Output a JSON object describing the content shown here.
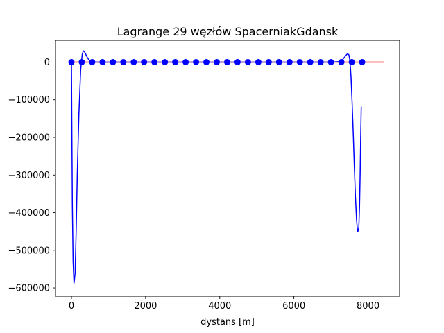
{
  "chart_data": {
    "type": "line",
    "title": "Lagrange 29 węzłów SpacerniakGdansk",
    "xlabel": "dystans [m]",
    "ylabel": "",
    "xlim": [
      -430,
      8850
    ],
    "ylim": [
      -622000,
      58000
    ],
    "x_ticks": [
      0,
      2000,
      4000,
      6000,
      8000
    ],
    "x_tick_labels": [
      "0",
      "2000",
      "4000",
      "6000",
      "8000"
    ],
    "y_ticks": [
      0,
      -100000,
      -200000,
      -300000,
      -400000,
      -500000,
      -600000
    ],
    "y_tick_labels": [
      "0",
      "−100000",
      "−200000",
      "−300000",
      "−400000",
      "−500000",
      "−600000"
    ],
    "grid": false,
    "series": [
      {
        "style": "line",
        "color": "#ff0000",
        "x": [
          0,
          8420
        ],
        "y": [
          0,
          0
        ]
      },
      {
        "style": "line",
        "color": "#0000ff",
        "x": [
          0,
          10,
          25,
          45,
          70,
          100,
          130,
          160,
          200,
          250,
          290,
          320,
          350,
          380,
          420,
          470,
          560,
          700,
          1000,
          2000,
          3000,
          4000,
          5000,
          6000,
          7000,
          7200,
          7300,
          7380,
          7440,
          7480,
          7510,
          7540,
          7570,
          7600,
          7630,
          7660,
          7690,
          7720,
          7750,
          7770,
          7785,
          7800,
          7815
        ],
        "y": [
          0,
          -150000,
          -380000,
          -530000,
          -588000,
          -560000,
          -440000,
          -290000,
          -140000,
          -20000,
          20000,
          30000,
          28000,
          22000,
          14000,
          6000,
          1000,
          0,
          0,
          0,
          0,
          0,
          0,
          0,
          0,
          1000,
          5000,
          15000,
          22000,
          20000,
          5000,
          -40000,
          -110000,
          -190000,
          -280000,
          -360000,
          -420000,
          -452000,
          -440000,
          -380000,
          -300000,
          -200000,
          -118000
        ]
      },
      {
        "style": "markers",
        "color": "#0000ff",
        "x": [
          0,
          280,
          560,
          840,
          1120,
          1400,
          1680,
          1960,
          2240,
          2520,
          2800,
          3080,
          3360,
          3640,
          3920,
          4200,
          4480,
          4760,
          5040,
          5320,
          5600,
          5880,
          6160,
          6440,
          6720,
          7000,
          7280,
          7560,
          7840
        ],
        "y": [
          0,
          0,
          0,
          0,
          0,
          0,
          0,
          0,
          0,
          0,
          0,
          0,
          0,
          0,
          0,
          0,
          0,
          0,
          0,
          0,
          0,
          0,
          0,
          0,
          0,
          0,
          0,
          0,
          0
        ]
      }
    ]
  }
}
